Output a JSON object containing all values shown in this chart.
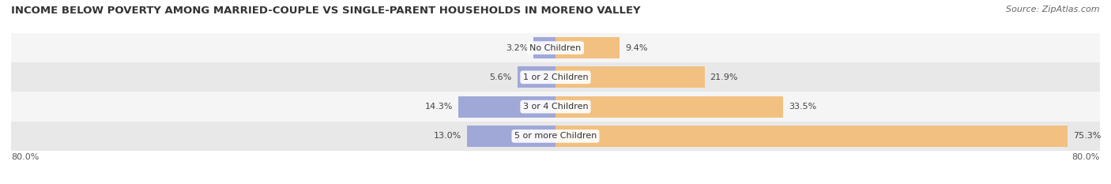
{
  "title": "INCOME BELOW POVERTY AMONG MARRIED-COUPLE VS SINGLE-PARENT HOUSEHOLDS IN MORENO VALLEY",
  "source": "Source: ZipAtlas.com",
  "categories": [
    "No Children",
    "1 or 2 Children",
    "3 or 4 Children",
    "5 or more Children"
  ],
  "married_values": [
    3.2,
    5.6,
    14.3,
    13.0
  ],
  "single_values": [
    9.4,
    21.9,
    33.5,
    75.3
  ],
  "married_color": "#a0a8d8",
  "single_color": "#f2c080",
  "row_bg_light": "#f5f5f5",
  "row_bg_dark": "#e8e8e8",
  "axis_left_label": "80.0%",
  "axis_right_label": "80.0%",
  "title_fontsize": 9.5,
  "source_fontsize": 8,
  "cat_label_fontsize": 8,
  "bar_label_fontsize": 8,
  "max_val": 80.0,
  "bar_height": 0.72
}
